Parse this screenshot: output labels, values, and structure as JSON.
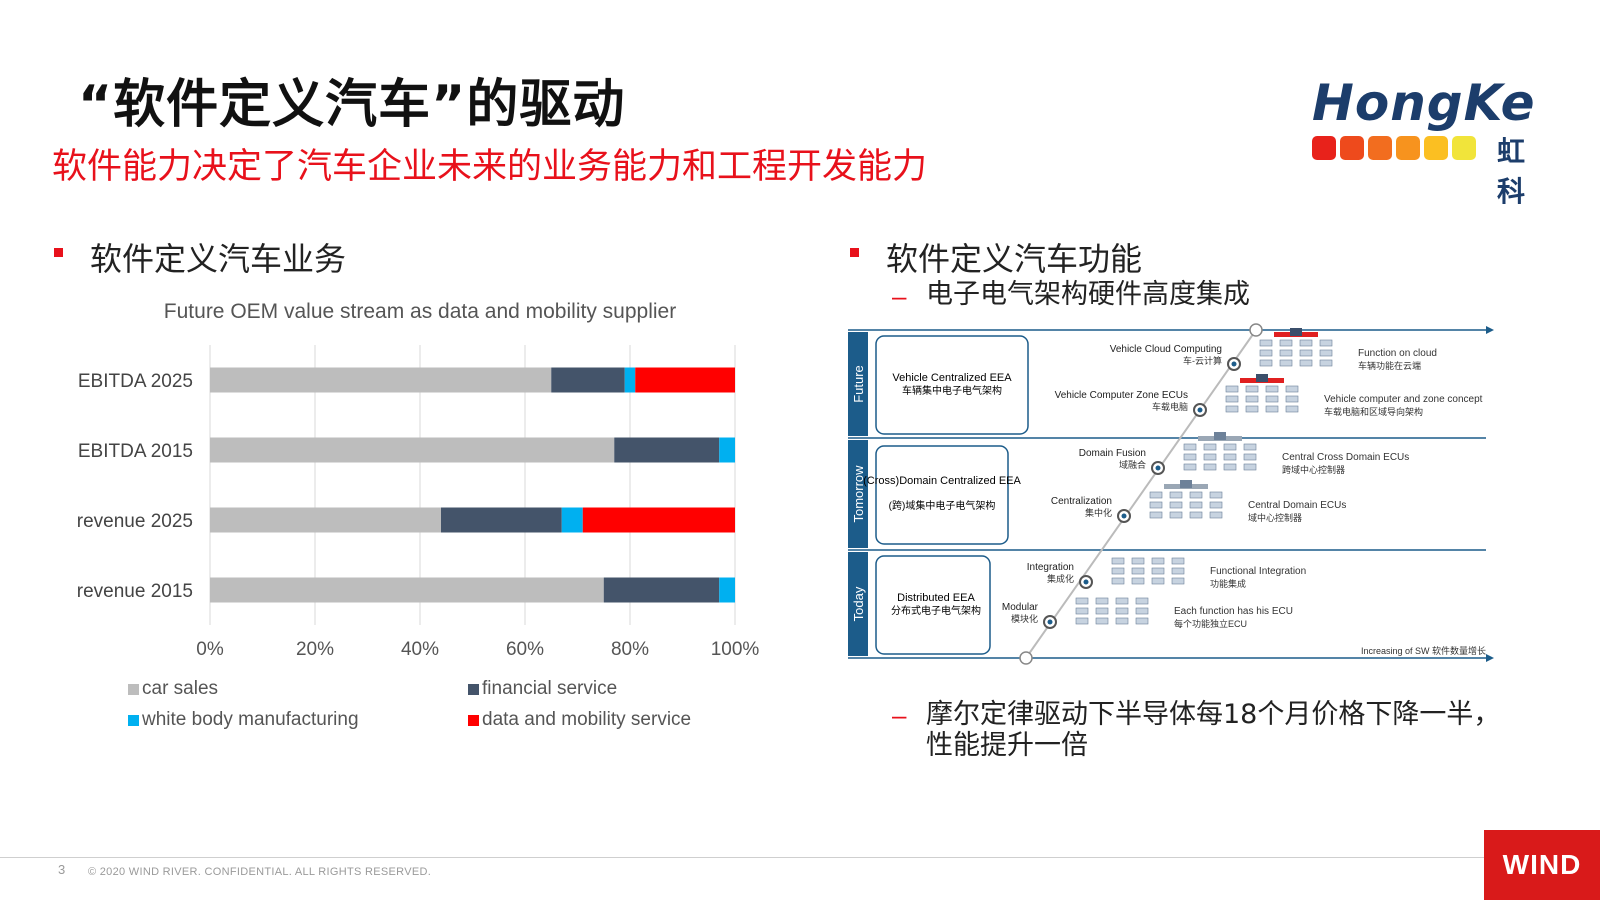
{
  "header": {
    "title": "“软件定义汽车”的驱动",
    "subtitle": "软件能力决定了汽车企业未来的业务能力和工程开发能力"
  },
  "logo": {
    "text": "HongKe",
    "cn": "虹科",
    "colors": [
      "#e8221b",
      "#ee4a1c",
      "#f26d1f",
      "#f7931e",
      "#fbbf22",
      "#f1e43a"
    ]
  },
  "left_section": {
    "heading": "软件定义汽车业务"
  },
  "right_section": {
    "heading": "软件定义汽车功能",
    "items": [
      "电子电气架构硬件高度集成",
      "摩尔定律驱动下半导体每18个月价格下降一半，性能提升一倍"
    ]
  },
  "chart_data": {
    "type": "bar",
    "orientation": "horizontal",
    "stacked": "percent",
    "title": "Future OEM value stream as data and mobility supplier",
    "categories": [
      "EBITDA 2025",
      "EBITDA 2015",
      "revenue 2025",
      "revenue 2015"
    ],
    "series": [
      {
        "name": "car sales",
        "color": "#bdbdbd",
        "values": [
          65,
          77,
          44,
          75
        ]
      },
      {
        "name": "financial service",
        "color": "#44546a",
        "values": [
          14,
          20,
          23,
          22
        ]
      },
      {
        "name": "white body manufacturing",
        "color": "#00b0f0",
        "values": [
          2,
          3,
          4,
          3
        ]
      },
      {
        "name": "data and mobility service",
        "color": "#ff0000",
        "values": [
          19,
          0,
          29,
          0
        ]
      }
    ],
    "xticks": [
      "0%",
      "20%",
      "40%",
      "60%",
      "80%",
      "100%"
    ],
    "xlim": [
      0,
      100
    ],
    "grid": true,
    "legend_position": "bottom"
  },
  "diagram": {
    "side_labels": [
      "Future",
      "Tomorrow",
      "Today"
    ],
    "boxes": [
      {
        "en": "Vehicle Centralized EEA",
        "cn": "车辆集中电子电气架构"
      },
      {
        "en": "(Cross)Domain Centralized EEA",
        "cn": "(跨)域集中电子电气架构"
      },
      {
        "en": "Distributed EEA",
        "cn": "分布式电子电气架构"
      }
    ],
    "steps": [
      {
        "en": "Vehicle Cloud Computing",
        "cn": "车-云计算",
        "desc_en": "Function on cloud",
        "desc_cn": "车辆功能在云端"
      },
      {
        "en": "Vehicle Computer Zone ECUs",
        "cn": "车载电脑",
        "desc_en": "Vehicle computer and zone concept",
        "desc_cn": "车载电脑和区域导向架构"
      },
      {
        "en": "Domain Fusion",
        "cn": "域融合",
        "desc_en": "Central Cross Domain ECUs",
        "desc_cn": "跨域中心控制器"
      },
      {
        "en": "Centralization",
        "cn": "集中化",
        "desc_en": "Central Domain ECUs",
        "desc_cn": "域中心控制器"
      },
      {
        "en": "Integration",
        "cn": "集成化",
        "desc_en": "Functional Integration",
        "desc_cn": "功能集成"
      },
      {
        "en": "Modular",
        "cn": "模块化",
        "desc_en": "Each function has his ECU",
        "desc_cn": "每个功能独立ECU"
      }
    ],
    "axis_label": "Increasing of SW 软件数量增长"
  },
  "footer": {
    "page": "3",
    "text": "© 2020 WIND RIVER. CONFIDENTIAL.  ALL RIGHTS RESERVED.",
    "brand": "WIND"
  }
}
